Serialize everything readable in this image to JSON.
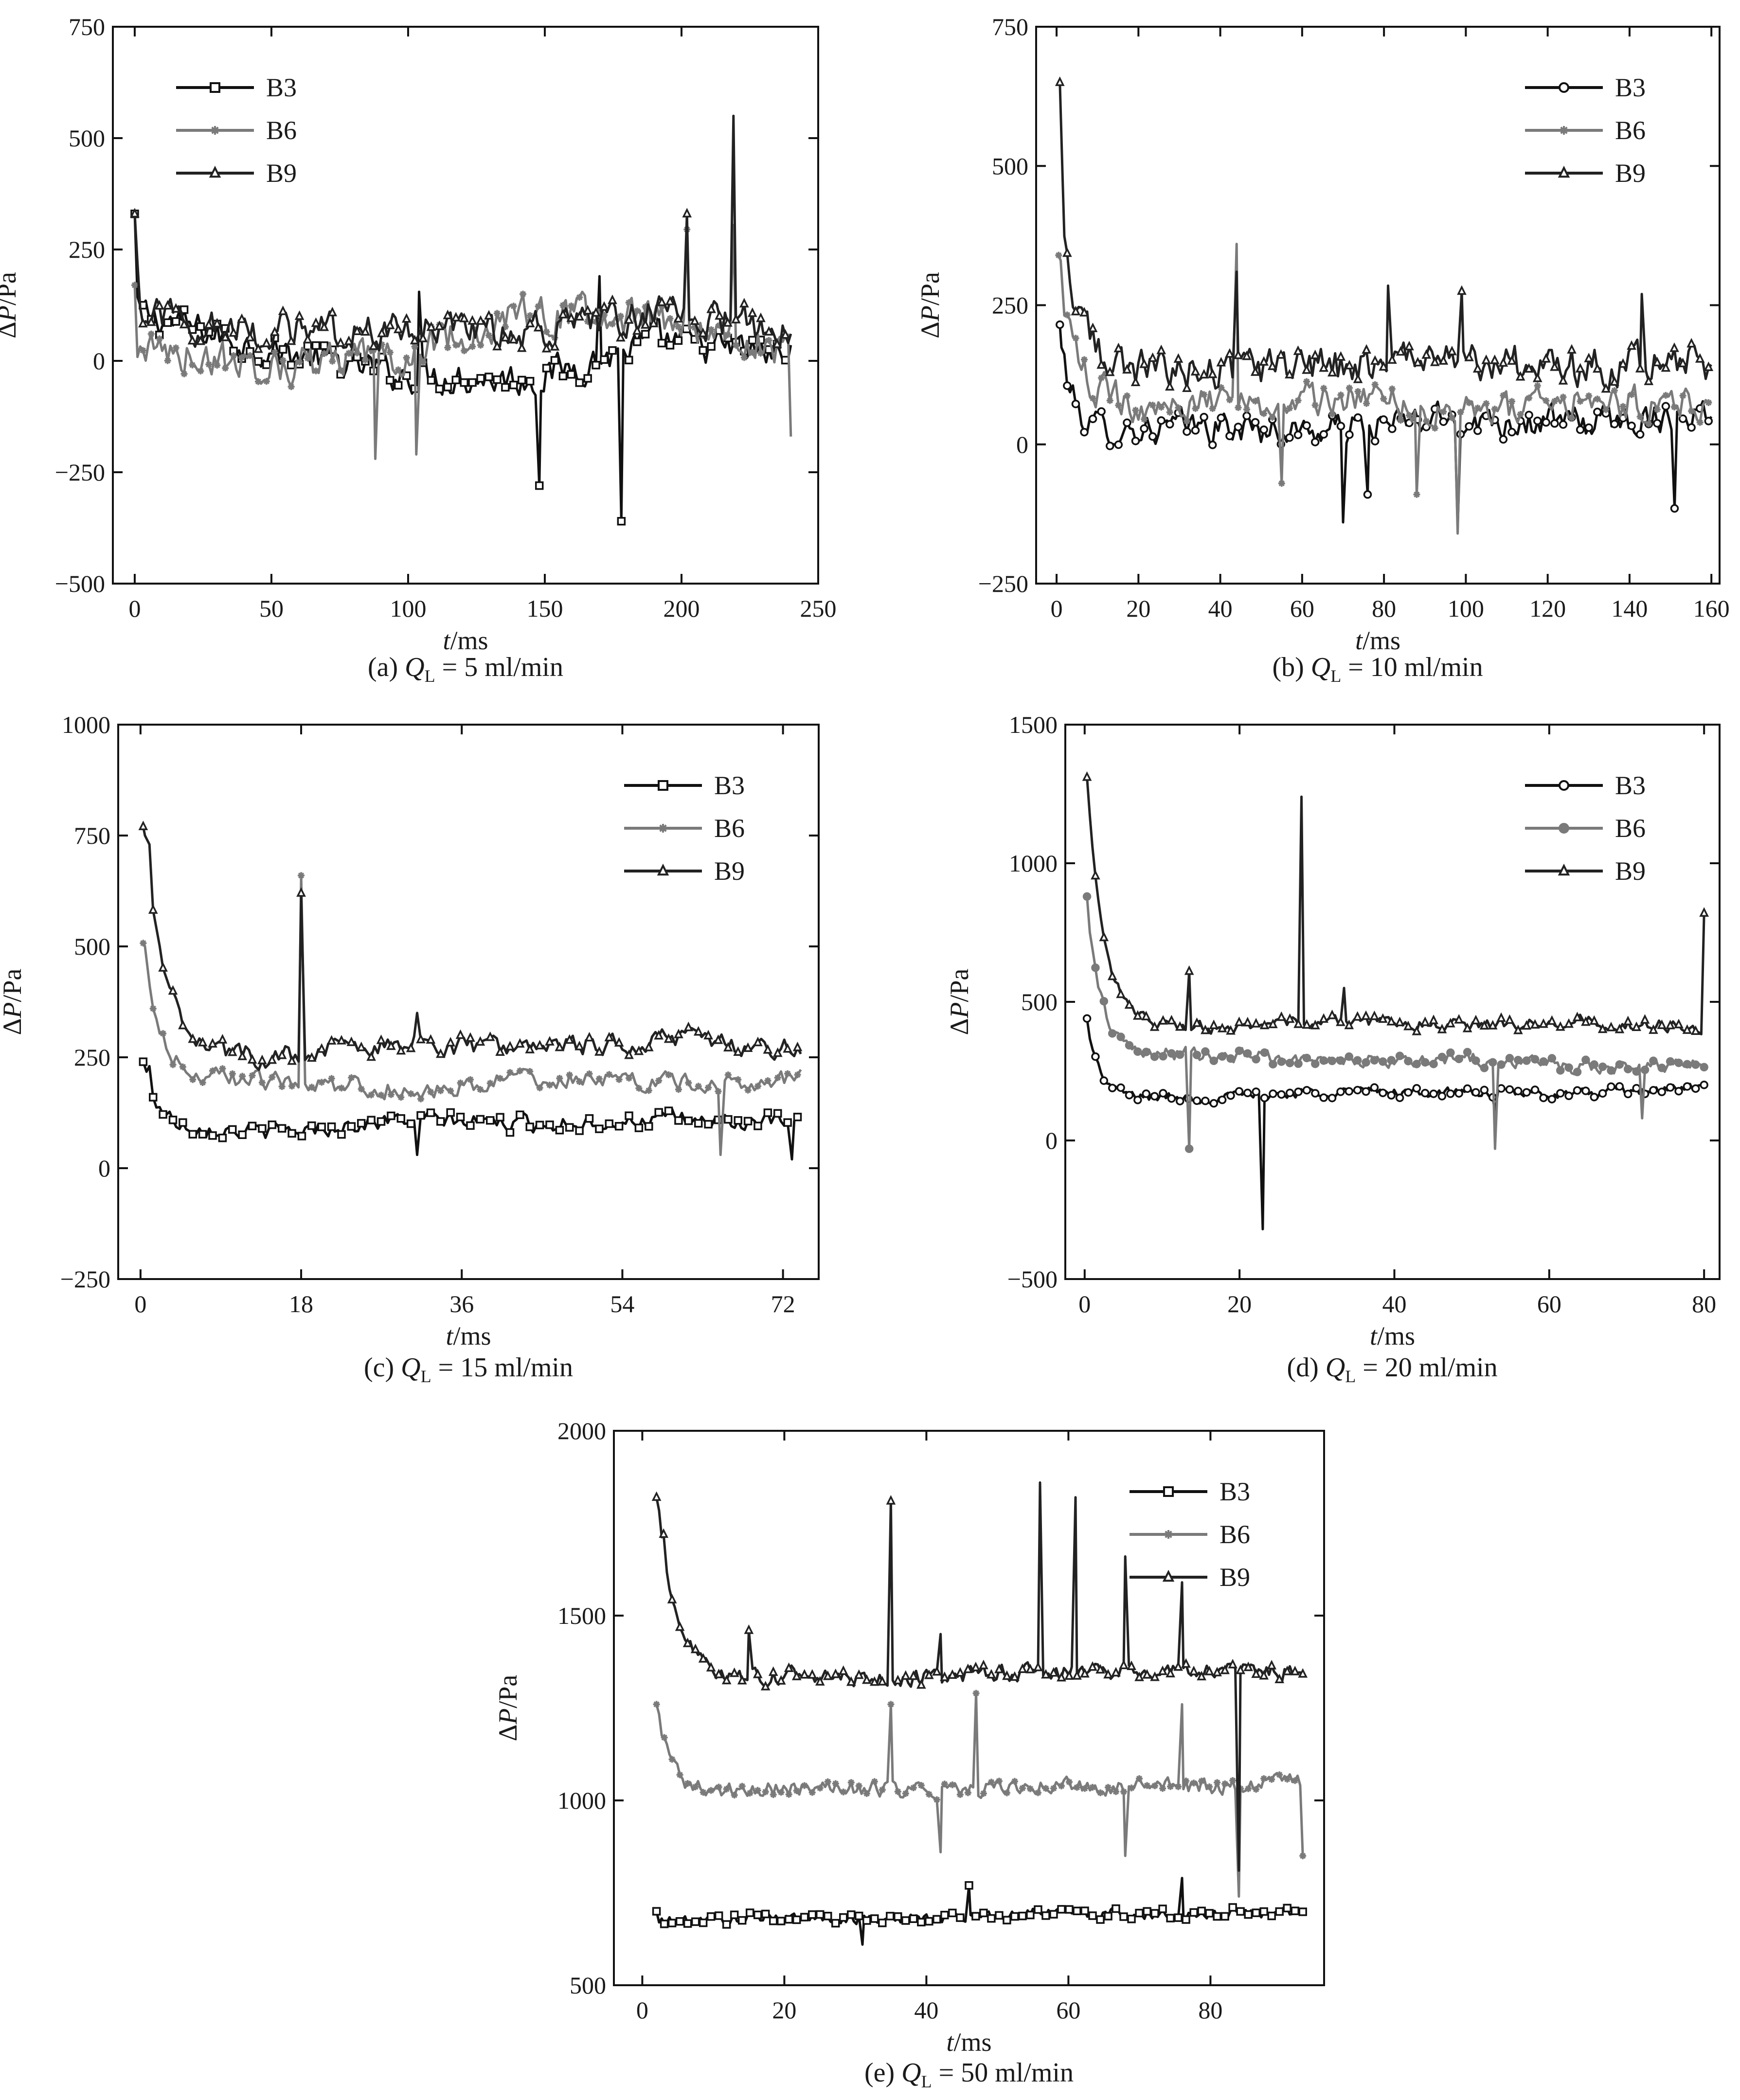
{
  "colors": {
    "B3": "#111111",
    "B6": "#7a7a7a",
    "B9": "#222222"
  },
  "chart_data": [
    {
      "id": "a",
      "type": "line",
      "caption": {
        "prefix": "(a) ",
        "symbol": "Q",
        "subscript": "L",
        "suffix": " = 5 ml/min"
      },
      "ylabel": {
        "prefix": "Δ",
        "italic": "P",
        "suffix": "/Pa"
      },
      "xlabel": {
        "italic": "t",
        "suffix": "/ms"
      },
      "xlim": [
        -8,
        250
      ],
      "ylim": [
        -500,
        750
      ],
      "xticks": [
        0,
        50,
        100,
        150,
        200,
        250
      ],
      "xtick_labels": [
        "0",
        "50",
        "100",
        "150",
        "200",
        "250"
      ],
      "yticks": [
        -500,
        -250,
        0,
        250,
        500,
        750
      ],
      "ytick_labels": [
        "−500",
        "−250",
        "0",
        "250",
        "500",
        "750"
      ],
      "legend_position": "top-left",
      "grid": false,
      "series": [
        {
          "name": "B3",
          "marker": "square",
          "x_range": [
            0,
            240
          ],
          "n": 240,
          "start": 110,
          "end": -10,
          "drift": [
            0,
            -60,
            -90,
            -80,
            30,
            20
          ],
          "decay_amp": 0,
          "decay_tau": 10,
          "noise": 60,
          "spikes": [
            [
              0,
              330
            ],
            [
              104,
              155
            ],
            [
              148,
              -280
            ],
            [
              178,
              -360
            ],
            [
              170,
              190
            ]
          ]
        },
        {
          "name": "B6",
          "marker": "star",
          "x_range": [
            0,
            240
          ],
          "n": 240,
          "start": 60,
          "end": 40,
          "drift": [
            -30,
            -70,
            -40,
            60,
            50,
            -20
          ],
          "decay_amp": 0,
          "decay_tau": 10,
          "noise": 65,
          "spikes": [
            [
              0,
              170
            ],
            [
              88,
              -220
            ],
            [
              103,
              -210
            ],
            [
              142,
              150
            ],
            [
              202,
              295
            ],
            [
              219,
              305
            ],
            [
              240,
              -170
            ]
          ]
        },
        {
          "name": "B9",
          "marker": "triangle",
          "x_range": [
            0,
            240
          ],
          "n": 240,
          "start": 100,
          "end": 30,
          "drift": [
            0,
            -20,
            -10,
            10,
            60,
            40
          ],
          "decay_amp": 0,
          "decay_tau": 10,
          "noise": 65,
          "spikes": [
            [
              0,
              330
            ],
            [
              1,
              220
            ],
            [
              202,
              330
            ],
            [
              219,
              550
            ],
            [
              229,
              95
            ]
          ]
        }
      ]
    },
    {
      "id": "b",
      "type": "line",
      "caption": {
        "prefix": "(b) ",
        "symbol": "Q",
        "subscript": "L",
        "suffix": " = 10 ml/min"
      },
      "ylabel": {
        "prefix": "Δ",
        "italic": "P",
        "suffix": "/Pa"
      },
      "xlabel": {
        "italic": "t",
        "suffix": "/ms"
      },
      "xlim": [
        -5,
        162
      ],
      "ylim": [
        -250,
        750
      ],
      "xticks": [
        0,
        20,
        40,
        60,
        80,
        100,
        120,
        140,
        160
      ],
      "xtick_labels": [
        "0",
        "20",
        "40",
        "60",
        "80",
        "100",
        "120",
        "140",
        "160"
      ],
      "yticks": [
        -250,
        0,
        250,
        500,
        750
      ],
      "ytick_labels": [
        "−250",
        "0",
        "250",
        "500",
        "750"
      ],
      "legend_position": "top-right",
      "grid": false,
      "series": [
        {
          "name": "B3",
          "marker": "circle",
          "x_range": [
            0.5,
            160
          ],
          "n": 230,
          "start": 20,
          "end": 30,
          "drift": [
            0,
            10,
            0,
            20,
            10,
            30
          ],
          "decay_amp": 200,
          "decay_tau": 3,
          "noise": 45,
          "spikes": [
            [
              0.8,
              215
            ],
            [
              70,
              -140
            ],
            [
              98,
              -150
            ],
            [
              151,
              -115
            ],
            [
              76,
              -90
            ]
          ]
        },
        {
          "name": "B6",
          "marker": "star",
          "x_range": [
            0.5,
            160
          ],
          "n": 230,
          "start": 80,
          "end": 70,
          "drift": [
            0,
            -10,
            10,
            -10,
            0,
            10
          ],
          "decay_amp": 250,
          "decay_tau": 4,
          "noise": 50,
          "spikes": [
            [
              1,
              330
            ],
            [
              44,
              360
            ],
            [
              98,
              -160
            ],
            [
              88,
              -90
            ],
            [
              55,
              -70
            ]
          ]
        },
        {
          "name": "B9",
          "marker": "triangle",
          "x_range": [
            0.5,
            160
          ],
          "n": 230,
          "start": 140,
          "end": 140,
          "drift": [
            0,
            -10,
            0,
            10,
            0,
            5
          ],
          "decay_amp": 350,
          "decay_tau": 4,
          "noise": 55,
          "spikes": [
            [
              0.8,
              650
            ],
            [
              1.5,
              470
            ],
            [
              44,
              310
            ],
            [
              81,
              285
            ],
            [
              99,
              275
            ],
            [
              143,
              270
            ]
          ]
        }
      ]
    },
    {
      "id": "c",
      "type": "line",
      "caption": {
        "prefix": "(c) ",
        "symbol": "Q",
        "subscript": "L",
        "suffix": " = 15 ml/min"
      },
      "ylabel": {
        "prefix": "Δ",
        "italic": "P",
        "suffix": "/Pa"
      },
      "xlabel": {
        "italic": "t",
        "suffix": "/ms"
      },
      "xlim": [
        -2.5,
        76
      ],
      "ylim": [
        -250,
        1000
      ],
      "xticks": [
        0,
        18,
        36,
        54,
        72
      ],
      "xtick_labels": [
        "0",
        "18",
        "36",
        "54",
        "72"
      ],
      "yticks": [
        -250,
        0,
        250,
        500,
        750,
        1000
      ],
      "ytick_labels": [
        "−250",
        "0",
        "250",
        "500",
        "750",
        "1000"
      ],
      "legend_position": "top-right",
      "grid": false,
      "series": [
        {
          "name": "B3",
          "marker": "square",
          "x_range": [
            0.3,
            74
          ],
          "n": 200,
          "start": 100,
          "end": 100,
          "drift": [
            0,
            -20,
            10,
            0,
            10,
            0
          ],
          "decay_amp": 140,
          "decay_tau": 1.5,
          "noise": 30,
          "spikes": [
            [
              0.3,
              240
            ],
            [
              1,
              230
            ],
            [
              73,
              20
            ],
            [
              31,
              30
            ]
          ]
        },
        {
          "name": "B6",
          "marker": "star",
          "x_range": [
            0.3,
            74
          ],
          "n": 200,
          "start": 200,
          "end": 190,
          "drift": [
            0,
            0,
            -20,
            10,
            0,
            10
          ],
          "decay_amp": 300,
          "decay_tau": 2,
          "noise": 35,
          "spikes": [
            [
              0.5,
              500
            ],
            [
              18,
              660
            ],
            [
              65,
              30
            ]
          ]
        },
        {
          "name": "B9",
          "marker": "triangle",
          "x_range": [
            0.3,
            74
          ],
          "n": 200,
          "start": 280,
          "end": 270,
          "drift": [
            0,
            -30,
            10,
            -10,
            20,
            0
          ],
          "decay_amp": 480,
          "decay_tau": 2.2,
          "noise": 40,
          "spikes": [
            [
              0.5,
              750
            ],
            [
              1,
              730
            ],
            [
              18,
              620
            ],
            [
              31,
              350
            ]
          ]
        }
      ]
    },
    {
      "id": "d",
      "type": "line",
      "caption": {
        "prefix": "(d) ",
        "symbol": "Q",
        "subscript": "L",
        "suffix": " = 20 ml/min"
      },
      "ylabel": {
        "prefix": "Δ",
        "italic": "P",
        "suffix": "/Pa"
      },
      "xlabel": {
        "italic": "t",
        "suffix": "/ms"
      },
      "xlim": [
        -2.5,
        82
      ],
      "ylim": [
        -500,
        1500
      ],
      "xticks": [
        0,
        20,
        40,
        60,
        80
      ],
      "xtick_labels": [
        "0",
        "20",
        "40",
        "60",
        "80"
      ],
      "yticks": [
        -500,
        0,
        500,
        1000,
        1500
      ],
      "ytick_labels": [
        "−500",
        "0",
        "500",
        "1000",
        "1500"
      ],
      "legend_position": "top-right",
      "grid": false,
      "series": [
        {
          "name": "B3",
          "marker": "circle",
          "x_range": [
            0.3,
            80
          ],
          "n": 220,
          "start": 160,
          "end": 180,
          "drift": [
            0,
            -10,
            10,
            0,
            -10,
            10
          ],
          "decay_amp": 280,
          "decay_tau": 1.5,
          "noise": 30,
          "spikes": [
            [
              0.3,
              440
            ],
            [
              23,
              -320
            ],
            [
              53,
              100
            ]
          ]
        },
        {
          "name": "B6",
          "marker": "dot",
          "x_range": [
            0.3,
            80
          ],
          "n": 220,
          "start": 300,
          "end": 280,
          "drift": [
            0,
            20,
            -10,
            10,
            -20,
            0
          ],
          "decay_amp": 550,
          "decay_tau": 2,
          "noise": 40,
          "spikes": [
            [
              0.3,
              880
            ],
            [
              13.5,
              -30
            ],
            [
              53,
              -30
            ],
            [
              72,
              80
            ]
          ]
        },
        {
          "name": "B9",
          "marker": "triangle",
          "x_range": [
            0.3,
            80
          ],
          "n": 220,
          "start": 410,
          "end": 420,
          "drift": [
            0,
            -10,
            20,
            0,
            10,
            -10
          ],
          "decay_amp": 900,
          "decay_tau": 2.2,
          "noise": 35,
          "spikes": [
            [
              0.3,
              1310
            ],
            [
              1,
              1060
            ],
            [
              13.5,
              610
            ],
            [
              28,
              1240
            ],
            [
              33.5,
              550
            ],
            [
              80,
              820
            ]
          ]
        }
      ]
    },
    {
      "id": "e",
      "type": "line",
      "caption": {
        "prefix": "(e) ",
        "symbol": "Q",
        "subscript": "L",
        "suffix": " = 50 ml/min"
      },
      "ylabel": {
        "prefix": "Δ",
        "italic": "P",
        "suffix": "/Pa"
      },
      "xlabel": {
        "italic": "t",
        "suffix": "/ms"
      },
      "xlim": [
        -4,
        96
      ],
      "ylim": [
        500,
        2000
      ],
      "xticks": [
        0,
        20,
        40,
        60,
        80
      ],
      "xtick_labels": [
        "0",
        "20",
        "40",
        "60",
        "80"
      ],
      "yticks": [
        500,
        1000,
        1500,
        2000
      ],
      "ytick_labels": [
        "500",
        "1000",
        "1500",
        "2000"
      ],
      "legend_position": "top-right",
      "grid": false,
      "series": [
        {
          "name": "B3",
          "marker": "square",
          "x_range": [
            2,
            93
          ],
          "n": 250,
          "start": 670,
          "end": 690,
          "drift": [
            0,
            10,
            0,
            15,
            5,
            10
          ],
          "decay_amp": 0,
          "decay_tau": 5,
          "noise": 25,
          "spikes": [
            [
              2,
              700
            ],
            [
              46,
              770
            ],
            [
              76,
              790
            ],
            [
              31,
              610
            ]
          ]
        },
        {
          "name": "B6",
          "marker": "star",
          "x_range": [
            2,
            93
          ],
          "n": 250,
          "start": 1010,
          "end": 1030,
          "drift": [
            0,
            20,
            10,
            20,
            10,
            20
          ],
          "decay_amp": 260,
          "decay_tau": 2,
          "noise": 35,
          "spikes": [
            [
              2,
              1260
            ],
            [
              35,
              1260
            ],
            [
              42,
              860
            ],
            [
              47,
              1290
            ],
            [
              68,
              850
            ],
            [
              76,
              1260
            ],
            [
              93,
              850
            ],
            [
              84,
              740
            ]
          ]
        },
        {
          "name": "B9",
          "marker": "triangle",
          "x_range": [
            2,
            93
          ],
          "n": 250,
          "start": 1310,
          "end": 1340,
          "drift": [
            0,
            20,
            10,
            20,
            15,
            10
          ],
          "decay_amp": 520,
          "decay_tau": 3,
          "noise": 35,
          "spikes": [
            [
              2,
              1820
            ],
            [
              3,
              1720
            ],
            [
              15,
              1460
            ],
            [
              35,
              1810
            ],
            [
              42,
              1450
            ],
            [
              56,
              1860
            ],
            [
              61,
              1820
            ],
            [
              68,
              1660
            ],
            [
              76,
              1590
            ],
            [
              84,
              810
            ]
          ]
        }
      ]
    }
  ]
}
